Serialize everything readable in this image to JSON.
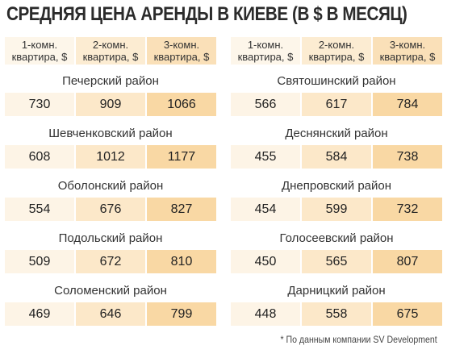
{
  "title": "СРЕДНЯЯ ЦЕНА АРЕНДЫ В КИЕВЕ (В $ В МЕСЯЦ)",
  "panels": [
    {
      "headers": [
        "1-комн. квартира, $",
        "2-комн. квартира, $",
        "3-комн. квартира, $"
      ],
      "districts": [
        {
          "name": "Печерский район",
          "values": [
            730,
            909,
            1066
          ]
        },
        {
          "name": "Шевченковский район",
          "values": [
            608,
            1012,
            1177
          ]
        },
        {
          "name": "Оболонский район",
          "values": [
            554,
            676,
            827
          ]
        },
        {
          "name": "Подольский район",
          "values": [
            509,
            672,
            810
          ]
        },
        {
          "name": "Соломенский район",
          "values": [
            469,
            646,
            799
          ]
        }
      ]
    },
    {
      "headers": [
        "1-комн. квартира, $",
        "2-комн. квартира, $",
        "3-комн. квартира, $"
      ],
      "districts": [
        {
          "name": "Святошинский район",
          "values": [
            566,
            617,
            784
          ]
        },
        {
          "name": "Деснянский район",
          "values": [
            455,
            584,
            738
          ]
        },
        {
          "name": "Днепровский район",
          "values": [
            454,
            599,
            732
          ]
        },
        {
          "name": "Голосеевский район",
          "values": [
            450,
            565,
            807
          ]
        },
        {
          "name": "Дарницкий район",
          "values": [
            448,
            558,
            675
          ]
        }
      ]
    }
  ],
  "footnote": "* По данным компании SV Development"
}
